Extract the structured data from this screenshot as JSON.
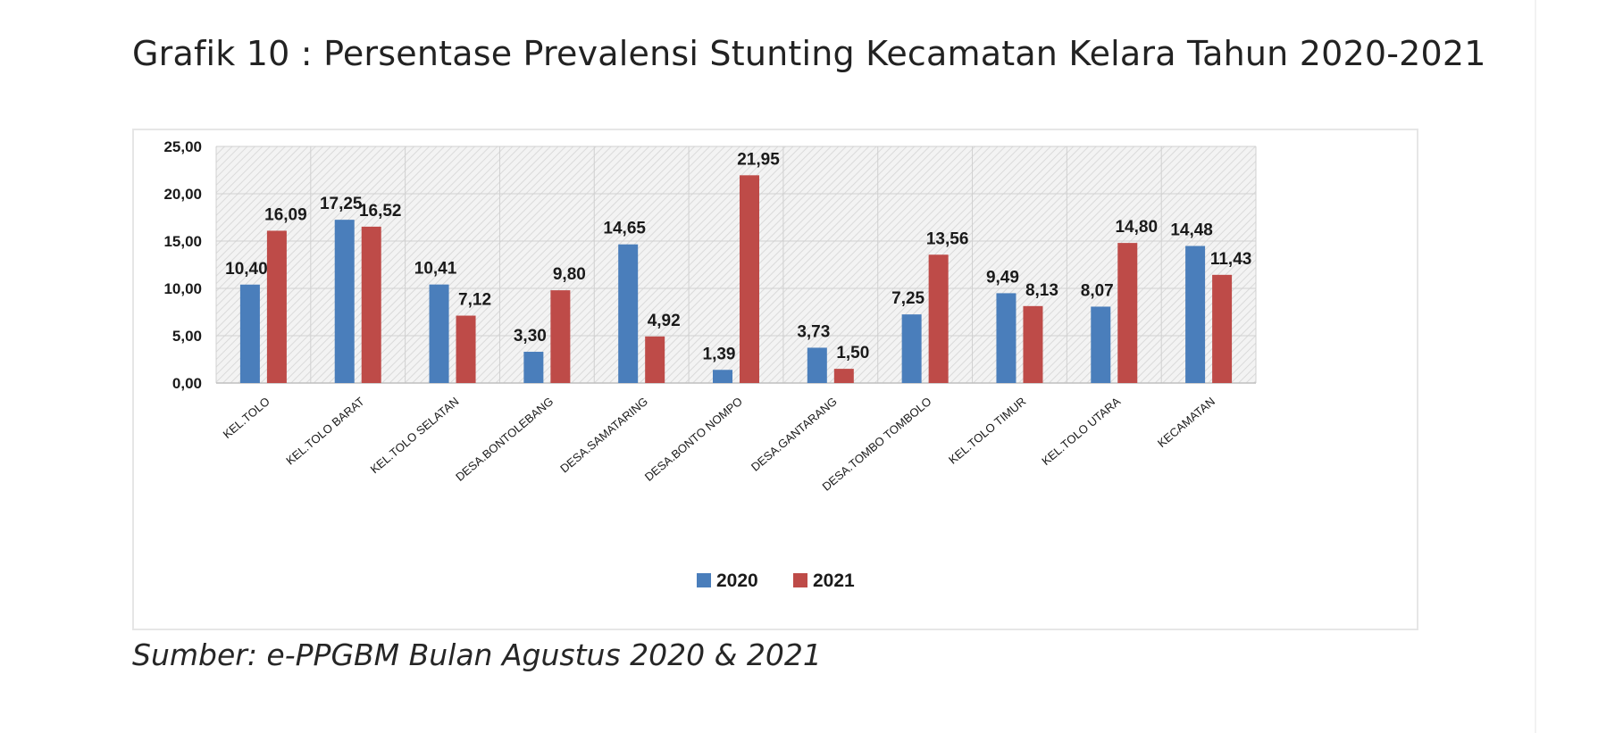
{
  "title": "Grafik 10 : Persentase Prevalensi Stunting Kecamatan Kelara Tahun 2020-2021",
  "source": "Sumber: e-PPGBM Bulan Agustus 2020 & 2021",
  "chart_data": {
    "type": "bar",
    "categories": [
      "KEL.TOLO",
      "KEL.TOLO BARAT",
      "KEL.TOLO SELATAN",
      "DESA.BONTOLEBANG",
      "DESA.SAMATARING",
      "DESA.BONTO NOMPO",
      "DESA.GANTARANG",
      "DESA.TOMBO TOMBOLO",
      "KEL.TOLO TIMUR",
      "KEL.TOLO UTARA",
      "KECAMATAN"
    ],
    "series": [
      {
        "name": "2020",
        "color": "#4A7EBB",
        "values": [
          10.4,
          17.25,
          10.41,
          3.3,
          14.65,
          1.39,
          3.73,
          7.25,
          9.49,
          8.07,
          14.48
        ],
        "labels": [
          "10,40",
          "17,25",
          "10,41",
          "3,30",
          "14,65",
          "1,39",
          "3,73",
          "7,25",
          "9,49",
          "8,07",
          "14,48"
        ]
      },
      {
        "name": "2021",
        "color": "#BE4B48",
        "values": [
          16.09,
          16.52,
          7.12,
          9.8,
          4.92,
          21.95,
          1.5,
          13.56,
          8.13,
          14.8,
          11.43
        ],
        "labels": [
          "16,09",
          "16,52",
          "7,12",
          "9,80",
          "4,92",
          "21,95",
          "1,50",
          "13,56",
          "8,13",
          "14,80",
          "11,43"
        ]
      }
    ],
    "ylim": [
      0,
      25
    ],
    "yticks": [
      "0,00",
      "5,00",
      "10,00",
      "15,00",
      "20,00",
      "25,00"
    ],
    "ytick_values": [
      0,
      5,
      10,
      15,
      20,
      25
    ],
    "xlabel": "",
    "ylabel": "",
    "grid": true,
    "legend": "bottom-center"
  }
}
